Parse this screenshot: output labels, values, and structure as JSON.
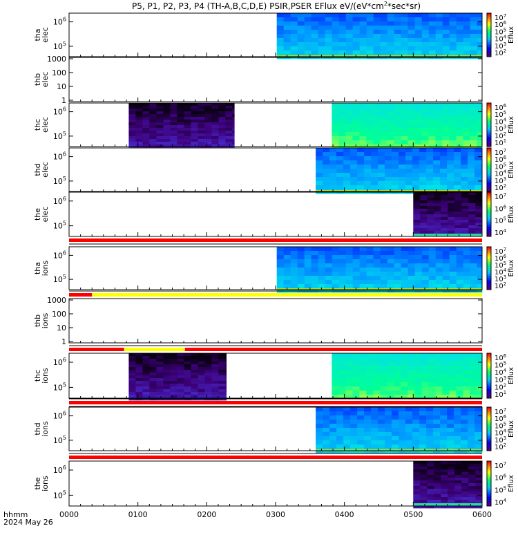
{
  "title": "P5, P1, P2, P3, P4 (TH-A,B,C,D,E) PSIR,PSER EFlux eV/(eV*cm2*sec*sr)",
  "title_parts": {
    "pre": "P5, P1, P2, P3, P4 (TH-A,B,C,D,E) PSIR,PSER EFlux eV/(eV*cm",
    "sup": "2",
    "post": "*sec*sr)"
  },
  "colorbar_label": "Eflux",
  "xaxis": {
    "ticks": [
      "0000",
      "0100",
      "0200",
      "0300",
      "0400",
      "0500",
      "0600"
    ],
    "label_line1": "hhmm",
    "label_line2": "2024 May 26"
  },
  "colors": {
    "flag_red": "#ff0000",
    "flag_yellow": "#ffff00",
    "frame": "#000000"
  },
  "chart_data": [
    {
      "id": "tha-elec",
      "type": "heatmap",
      "ylabel": [
        "tha",
        "elec"
      ],
      "ytick_labels": [
        "10^5",
        "10^6"
      ],
      "colorbar_ticks": [
        "10^7",
        "10^6",
        "10^5",
        "10^4",
        "10^3",
        "10^2"
      ],
      "data_extent_hhmm": [
        [
          "0301",
          "0600"
        ]
      ],
      "palette": "blue-cyan"
    },
    {
      "id": "thb-elec",
      "type": "heatmap",
      "ylabel": [
        "thb",
        "elec"
      ],
      "ytick_labels": [
        "1000",
        "100",
        "10",
        "1"
      ],
      "data_extent_hhmm": []
    },
    {
      "id": "thc-elec",
      "type": "heatmap",
      "ylabel": [
        "thc",
        "elec"
      ],
      "ytick_labels": [
        "10^5",
        "10^6"
      ],
      "colorbar_ticks": [
        "10^6",
        "10^5",
        "10^4",
        "10^3",
        "10^2",
        "10^1"
      ],
      "data_extent_hhmm": [
        [
          "0052",
          "0224"
        ],
        [
          "0349",
          "0600"
        ]
      ],
      "palette": "dark-purple / green-cyan"
    },
    {
      "id": "thd-elec",
      "type": "heatmap",
      "ylabel": [
        "thd",
        "elec"
      ],
      "ytick_labels": [
        "10^5",
        "10^6"
      ],
      "colorbar_ticks": [
        "10^7",
        "10^6",
        "10^5",
        "10^4",
        "10^3",
        "10^2"
      ],
      "data_extent_hhmm": [
        [
          "0335",
          "0600"
        ]
      ],
      "palette": "blue-cyan"
    },
    {
      "id": "the-elec",
      "type": "heatmap",
      "ylabel": [
        "the",
        "elec"
      ],
      "ytick_labels": [
        "10^5",
        "10^6"
      ],
      "colorbar_ticks": [
        "10^7",
        "10^6",
        "10^5",
        "10^4"
      ],
      "data_extent_hhmm": [
        [
          "0500",
          "0600"
        ]
      ],
      "palette": "dark-purple"
    },
    {
      "id": "tha-ions",
      "type": "heatmap",
      "ylabel": [
        "tha",
        "ions"
      ],
      "ytick_labels": [
        "10^5",
        "10^6"
      ],
      "colorbar_ticks": [
        "10^7",
        "10^6",
        "10^5",
        "10^4",
        "10^3",
        "10^2"
      ],
      "data_extent_hhmm": [
        [
          "0301",
          "0600"
        ]
      ],
      "palette": "blue-cyan"
    },
    {
      "id": "thb-ions",
      "type": "heatmap",
      "ylabel": [
        "thb",
        "ions"
      ],
      "ytick_labels": [
        "1000",
        "100",
        "10",
        "1"
      ],
      "data_extent_hhmm": []
    },
    {
      "id": "thc-ions",
      "type": "heatmap",
      "ylabel": [
        "thc",
        "ions"
      ],
      "ytick_labels": [
        "10^5",
        "10^6"
      ],
      "colorbar_ticks": [
        "10^6",
        "10^5",
        "10^4",
        "10^3",
        "10^2",
        "10^1"
      ],
      "data_extent_hhmm": [
        [
          "0052",
          "0217"
        ],
        [
          "0349",
          "0600"
        ]
      ],
      "palette": "dark-purple / green-cyan"
    },
    {
      "id": "thd-ions",
      "type": "heatmap",
      "ylabel": [
        "thd",
        "ions"
      ],
      "ytick_labels": [
        "10^5",
        "10^6"
      ],
      "colorbar_ticks": [
        "10^7",
        "10^6",
        "10^5",
        "10^4",
        "10^3",
        "10^2"
      ],
      "data_extent_hhmm": [
        [
          "0335",
          "0600"
        ]
      ],
      "palette": "blue-cyan"
    },
    {
      "id": "the-ions",
      "type": "heatmap",
      "ylabel": [
        "the",
        "ions"
      ],
      "ytick_labels": [
        "10^5",
        "10^6"
      ],
      "colorbar_ticks": [
        "10^7",
        "10^6",
        "10^5",
        "10^4"
      ],
      "data_extent_hhmm": [
        [
          "0500",
          "0600"
        ]
      ],
      "palette": "dark-purple"
    }
  ],
  "flag_bars": [
    {
      "after_panel": "the-elec",
      "segments": [
        {
          "from": "0000",
          "to": "0600",
          "color": "red"
        }
      ]
    },
    {
      "after_panel": "tha-ions",
      "segments": [
        {
          "from": "0000",
          "to": "0020",
          "color": "red"
        },
        {
          "from": "0020",
          "to": "0600",
          "color": "yellow"
        }
      ]
    },
    {
      "after_panel": "thb-ions",
      "segments": [
        {
          "from": "0000",
          "to": "0048",
          "color": "red"
        },
        {
          "from": "0048",
          "to": "0141",
          "color": "yellow"
        },
        {
          "from": "0141",
          "to": "0600",
          "color": "red"
        }
      ]
    },
    {
      "after_panel": "thc-ions",
      "segments": [
        {
          "from": "0000",
          "to": "0600",
          "color": "red"
        }
      ]
    },
    {
      "after_panel": "thd-ions",
      "segments": [
        {
          "from": "0000",
          "to": "0600",
          "color": "red"
        }
      ]
    }
  ]
}
